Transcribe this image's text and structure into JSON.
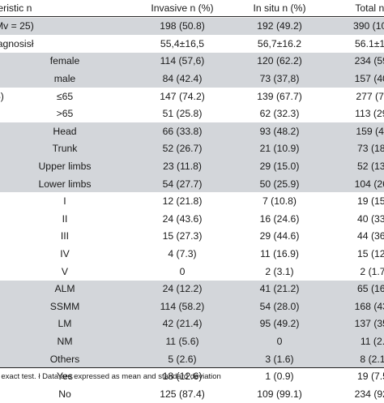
{
  "header": [
    "teristic n",
    "Invasive n (%)",
    "In situ n (%)",
    "Total n ("
  ],
  "rows": [
    {
      "label": "Mv = 25)",
      "sub": "",
      "invasive": "198 (50.8)",
      "insitu": "192 (49.2)",
      "total": "390 (100",
      "shaded": true
    },
    {
      "label": "iagnosisł",
      "sub": "",
      "invasive": "55,4±16,5",
      "insitu": "56,7±16.2",
      "total": "56.1±16",
      "shaded": false
    },
    {
      "label": "",
      "sub": "female",
      "invasive": "114 (57,6)",
      "insitu": "120 (62.2)",
      "total": "234 (59.",
      "shaded": true
    },
    {
      "label": "",
      "sub": "male",
      "invasive": "84 (42.4)",
      "insitu": "73 (37,8)",
      "total": "157 (40.",
      "shaded": true
    },
    {
      "label": "5)",
      "sub": "≤65",
      "invasive": "147 (74.2)",
      "insitu": "139 (67.7)",
      "total": "277 (71",
      "shaded": false
    },
    {
      "label": "",
      "sub": ">65",
      "invasive": "51 (25.8)",
      "insitu": "62 (32.3)",
      "total": "113 (29.",
      "shaded": false
    },
    {
      "label": "",
      "sub": "Head",
      "invasive": "66 (33.8)",
      "insitu": "93 (48.2)",
      "total": "159 (41",
      "shaded": true
    },
    {
      "label": "",
      "sub": "Trunk",
      "invasive": "52 (26.7)",
      "insitu": "21 (10.9)",
      "total": "73 (18.",
      "shaded": true
    },
    {
      "label": "",
      "sub": "Upper limbs",
      "invasive": "23 (11.8)",
      "insitu": "29 (15.0)",
      "total": "52 (13.",
      "shaded": true
    },
    {
      "label": "",
      "sub": "Lower limbs",
      "invasive": "54 (27.7)",
      "insitu": "50 (25.9)",
      "total": "104 (26.",
      "shaded": true
    },
    {
      "label": "",
      "sub": "I",
      "invasive": "12 (21.8)",
      "insitu": "7 (10.8)",
      "total": "19 (15.",
      "shaded": false
    },
    {
      "label": "",
      "sub": "II",
      "invasive": "24 (43.6)",
      "insitu": "16 (24.6)",
      "total": "40 (33.",
      "shaded": false
    },
    {
      "label": "",
      "sub": "III",
      "invasive": "15 (27.3)",
      "insitu": "29 (44.6)",
      "total": "44 (36.",
      "shaded": false
    },
    {
      "label": "",
      "sub": "IV",
      "invasive": "4 (7.3)",
      "insitu": "11 (16.9)",
      "total": "15 (12.",
      "shaded": false
    },
    {
      "label": "",
      "sub": "V",
      "invasive": "0",
      "insitu": "2 (3.1)",
      "total": "2 (1.7",
      "shaded": false
    },
    {
      "label": "",
      "sub": "ALM",
      "invasive": "24 (12.2)",
      "insitu": "41 (21.2)",
      "total": "65 (16.",
      "shaded": true
    },
    {
      "label": "",
      "sub": "SSMM",
      "invasive": "114 (58.2)",
      "insitu": "54 (28.0)",
      "total": "168 (43.",
      "shaded": true
    },
    {
      "label": ")",
      "sub": "LM",
      "invasive": "42 (21.4)",
      "insitu": "95 (49.2)",
      "total": "137 (35.",
      "shaded": true
    },
    {
      "label": "",
      "sub": "NM",
      "invasive": "11 (5.6)",
      "insitu": "0",
      "total": "11 (2.",
      "shaded": true
    },
    {
      "label": "",
      "sub": "Others",
      "invasive": "5 (2.6)",
      "insitu": "3 (1.6)",
      "total": "8 (2.1",
      "shaded": true
    },
    {
      "label": "",
      "sub": "Yes",
      "invasive": "18 (12.6)",
      "insitu": "1 (0.9)",
      "total": "19 (7.5",
      "shaded": false
    },
    {
      "label": "",
      "sub": "No",
      "invasive": "125 (87.4)",
      "insitu": "109 (99.1)",
      "total": "234 (92.",
      "shaded": false
    }
  ],
  "footnote": "s exact test. ł Data are expressed as mean and standard deviation"
}
